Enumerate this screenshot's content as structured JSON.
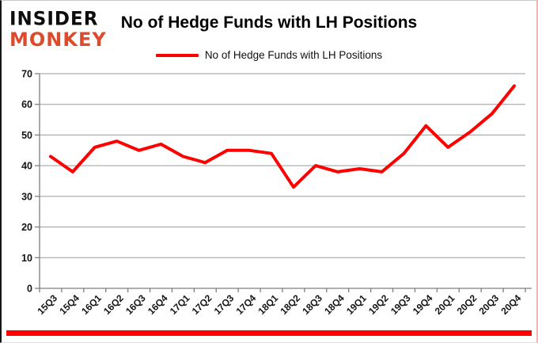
{
  "branding": {
    "line1": "INSIDER",
    "line2": "MONKEY"
  },
  "header": {
    "title": "No of Hedge Funds with LH Positions"
  },
  "legend": {
    "label": "No of Hedge Funds with LH Positions"
  },
  "colors": {
    "line": "#fe0000",
    "bottom_bar": "#fe0000",
    "gridline": "#9a9a9a",
    "axis": "#7f7f7f",
    "tick_label": "#141414",
    "logo_monkey": "#dd4a2c"
  },
  "chart_data": {
    "type": "line",
    "title": "No of Hedge Funds with LH Positions",
    "categories": [
      "15Q3",
      "15Q4",
      "16Q1",
      "16Q2",
      "16Q3",
      "16Q4",
      "17Q1",
      "17Q2",
      "17Q3",
      "17Q4",
      "18Q1",
      "18Q2",
      "18Q3",
      "18Q4",
      "19Q1",
      "19Q2",
      "19Q3",
      "19Q4",
      "20Q1",
      "20Q2",
      "20Q3",
      "20Q4"
    ],
    "series": [
      {
        "name": "No of Hedge Funds with LH Positions",
        "values": [
          43,
          38,
          46,
          48,
          45,
          47,
          43,
          41,
          45,
          45,
          44,
          33,
          40,
          38,
          39,
          38,
          44,
          53,
          46,
          51,
          57,
          66
        ]
      }
    ],
    "xlabel": "",
    "ylabel": "",
    "ylim": [
      0,
      70
    ],
    "yticks": [
      0,
      10,
      20,
      30,
      40,
      50,
      60,
      70
    ],
    "grid": true,
    "legend_position": "top"
  }
}
